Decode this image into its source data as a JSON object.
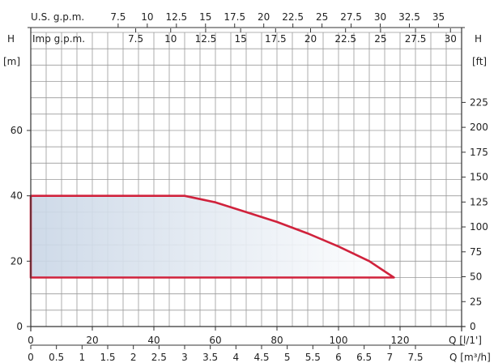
{
  "chart_data": {
    "type": "area",
    "colors": {
      "envelope_stroke": "#d0223c",
      "envelope_fill": "#c9d6e6",
      "grid": "#9a9a9a",
      "axis": "#333333"
    },
    "grid": true,
    "scales": {
      "us_gpm": {
        "label": "U.S. g.p.m.",
        "ticks": [
          "7.5",
          "10",
          "12.5",
          "15",
          "17.5",
          "20",
          "22.5",
          "25",
          "27.5",
          "30",
          "32.5",
          "35"
        ]
      },
      "imp_gpm": {
        "label": "Imp g.p.m.",
        "ticks": [
          "7.5",
          "10",
          "12.5",
          "15",
          "17.5",
          "20",
          "22.5",
          "25",
          "27.5",
          "30"
        ]
      },
      "q_lpm": {
        "label": "Q [l/1']",
        "ticks": [
          "0",
          "20",
          "40",
          "60",
          "80",
          "100",
          "120"
        ]
      },
      "q_m3h": {
        "label": "Q [m³/h]",
        "ticks": [
          "0",
          "0.5",
          "1",
          "1.5",
          "2",
          "2.5",
          "3",
          "3.5",
          "4",
          "4.5",
          "5",
          "5.5",
          "6",
          "6.5",
          "7",
          "7.5"
        ]
      },
      "h_m": {
        "label_top": "H",
        "label_unit": "[m]",
        "ticks": [
          "0",
          "20",
          "40",
          "60"
        ]
      },
      "h_ft": {
        "label_top": "H",
        "label_unit": "[ft]",
        "ticks": [
          "0",
          "25",
          "50",
          "75",
          "100",
          "125",
          "150",
          "175",
          "200",
          "225"
        ]
      }
    },
    "xlim_lpm": [
      0,
      140
    ],
    "ylim_m": [
      0,
      90
    ],
    "envelope": {
      "x_lpm": [
        0,
        50,
        60,
        70,
        80,
        90,
        100,
        110,
        118,
        118,
        0
      ],
      "y_m": [
        40,
        40,
        38,
        35,
        32,
        28.5,
        24.5,
        20,
        15,
        15,
        15
      ]
    }
  }
}
